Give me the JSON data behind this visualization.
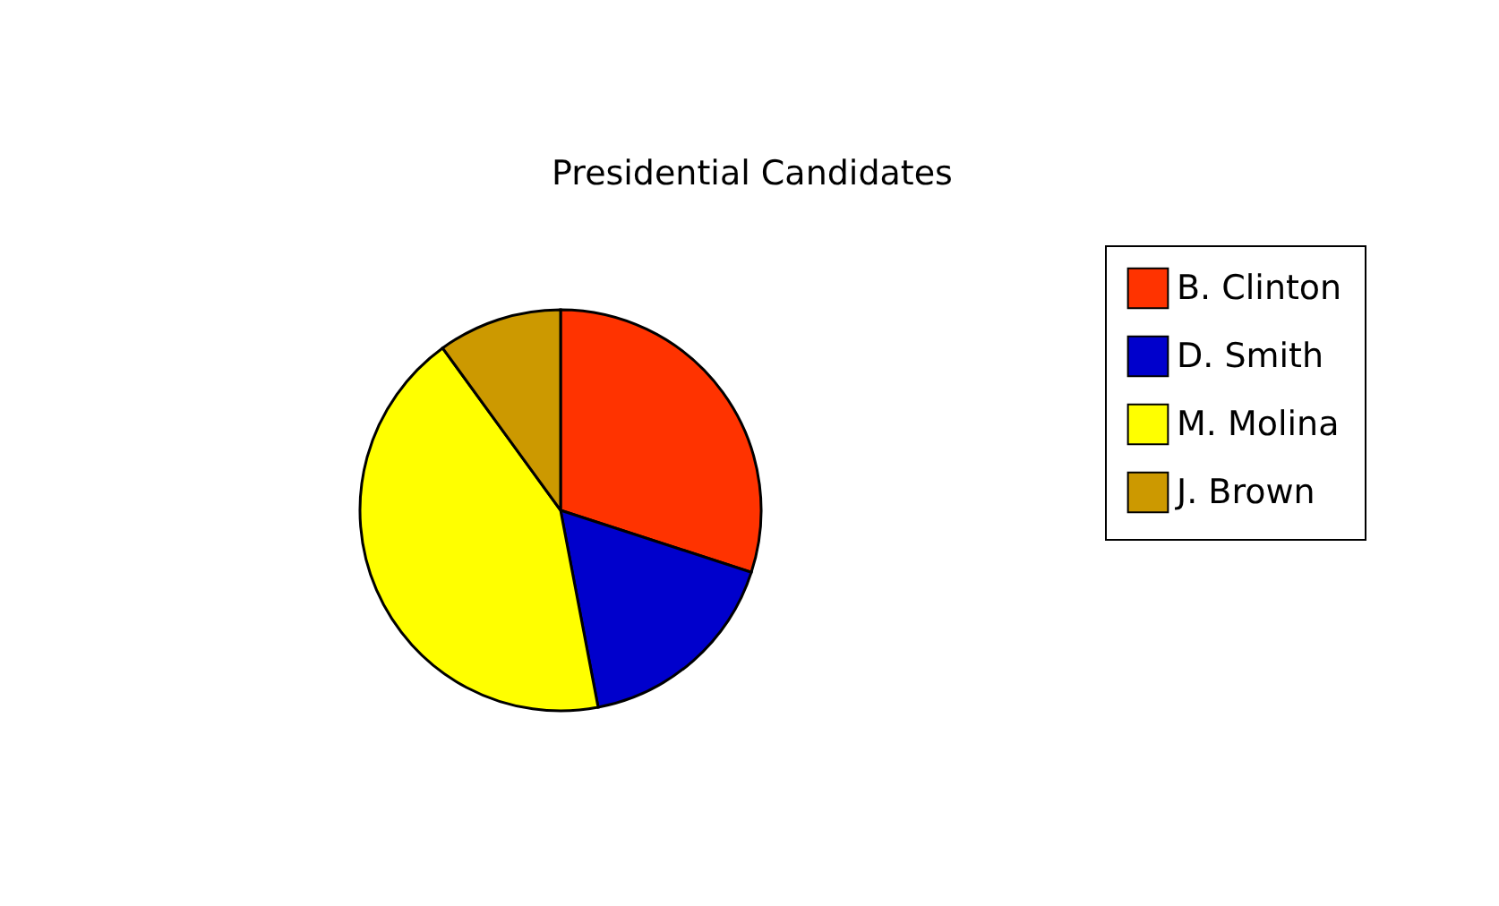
{
  "chart_data": {
    "type": "pie",
    "title": "Presidential Candidates",
    "categories": [
      "B. Clinton",
      "D. Smith",
      "M. Molina",
      "J. Brown"
    ],
    "values": [
      30,
      17,
      43,
      10
    ],
    "colors": [
      "#ff3300",
      "#0000cc",
      "#ffff00",
      "#cc9900"
    ],
    "legend": "right"
  }
}
